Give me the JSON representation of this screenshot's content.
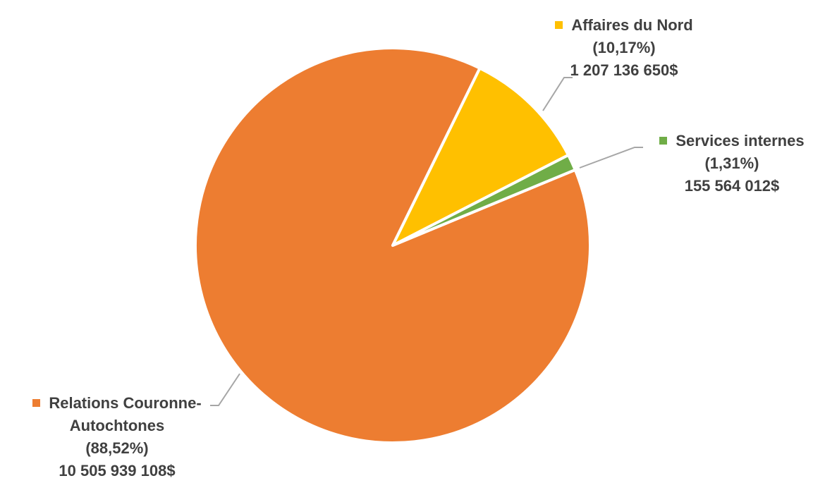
{
  "chart_data": {
    "type": "pie",
    "title": "",
    "slices": [
      {
        "label_lines": [
          "Relations Couronne-",
          "Autochtones"
        ],
        "percent_label": "(88,52%)",
        "amount_label": "10 505 939 108$",
        "percent": 88.52,
        "value": 10505939108,
        "color": "#ED7D31"
      },
      {
        "label_lines": [
          "Affaires du Nord"
        ],
        "percent_label": "(10,17%)",
        "amount_label": "1 207 136 650$",
        "percent": 10.17,
        "value": 1207136650,
        "color": "#FFC000"
      },
      {
        "label_lines": [
          "Services internes"
        ],
        "percent_label": "(1,31%)",
        "amount_label": "155 564 012$",
        "percent": 1.31,
        "value": 155564012,
        "color": "#70AD47"
      }
    ]
  }
}
